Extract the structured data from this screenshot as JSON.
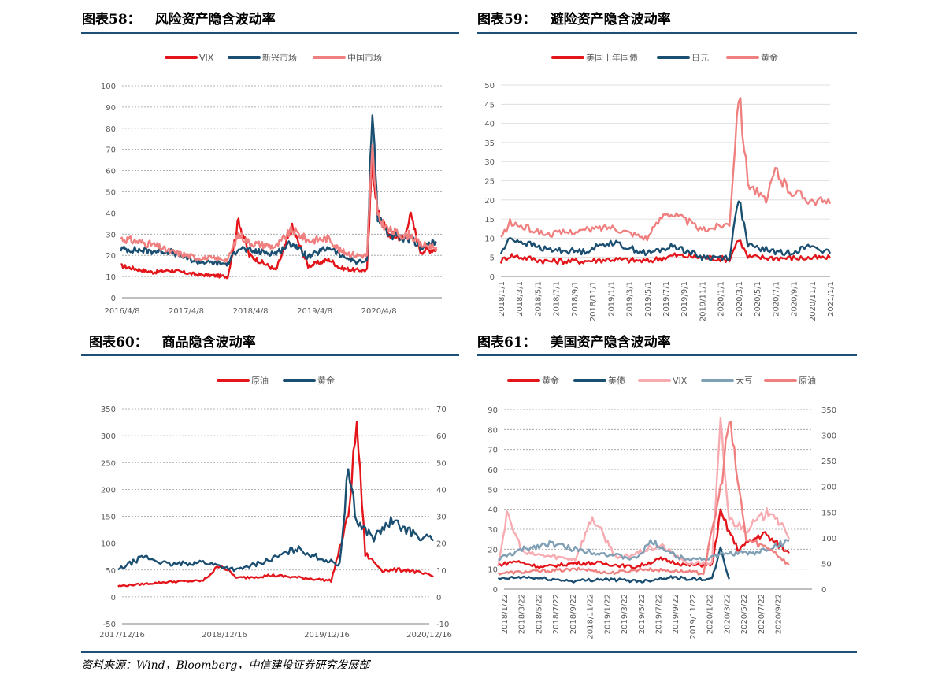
{
  "panels": [
    {
      "label": "图表58：",
      "title": "风险资产隐含波动率",
      "chart_data": {
        "type": "line",
        "title": "风险资产隐含波动率",
        "x_ticks": [
          "2016/4/8",
          "2017/4/8",
          "2018/4/8",
          "2019/4/8",
          "2020/4/8"
        ],
        "x_range": [
          "2016/4/8",
          "2021/3/31"
        ],
        "ylim": [
          0,
          100
        ],
        "yticks": [
          0,
          10,
          20,
          30,
          40,
          50,
          60,
          70,
          80,
          90,
          100
        ],
        "grid": "horizontal-dashed",
        "legend_position": "top",
        "series": [
          {
            "name": "VIX",
            "color": "#e3151a",
            "x": [
              "2016/4",
              "2016/10",
              "2017/1",
              "2017/6",
              "2017/12",
              "2018/2",
              "2018/4",
              "2018/9",
              "2018/12",
              "2019/3",
              "2019/7",
              "2019/9",
              "2019/12",
              "2020/2",
              "2020/3",
              "2020/4",
              "2020/6",
              "2020/9",
              "2020/10",
              "2020/12",
              "2021/3"
            ],
            "values": [
              15,
              12,
              13,
              11,
              10,
              37,
              20,
              13,
              33,
              15,
              18,
              14,
              13,
              13,
              65,
              40,
              30,
              28,
              40,
              22,
              23
            ]
          },
          {
            "name": "新兴市场",
            "color": "#1b4f72",
            "x": [
              "2016/4",
              "2016/10",
              "2017/1",
              "2017/6",
              "2017/12",
              "2018/2",
              "2018/4",
              "2018/9",
              "2018/12",
              "2019/3",
              "2019/7",
              "2019/9",
              "2019/12",
              "2020/2",
              "2020/3",
              "2020/4",
              "2020/6",
              "2020/9",
              "2020/10",
              "2020/12",
              "2021/3"
            ],
            "values": [
              23,
              22,
              22,
              17,
              16,
              24,
              22,
              21,
              26,
              19,
              24,
              20,
              17,
              17,
              92,
              38,
              30,
              27,
              28,
              24,
              26
            ]
          },
          {
            "name": "中国市场",
            "color": "#f08080",
            "x": [
              "2016/4",
              "2016/10",
              "2017/1",
              "2017/6",
              "2017/12",
              "2018/2",
              "2018/4",
              "2018/9",
              "2018/12",
              "2019/3",
              "2019/7",
              "2019/9",
              "2019/12",
              "2020/2",
              "2020/3",
              "2020/4",
              "2020/6",
              "2020/9",
              "2020/10",
              "2020/12",
              "2021/3"
            ],
            "values": [
              28,
              25,
              22,
              19,
              18,
              30,
              26,
              24,
              32,
              27,
              28,
              22,
              20,
              20,
              70,
              38,
              32,
              29,
              30,
              25,
              24
            ]
          }
        ]
      }
    },
    {
      "label": "图表59：",
      "title": "避险资产隐含波动率",
      "chart_data": {
        "type": "line",
        "title": "避险资产隐含波动率",
        "x_ticks": [
          "2018/1/1",
          "2018/3/1",
          "2018/5/1",
          "2018/7/1",
          "2018/9/1",
          "2018/11/1",
          "2019/1/1",
          "2019/3/1",
          "2019/5/1",
          "2019/7/1",
          "2019/9/1",
          "2019/11/1",
          "2020/1/1",
          "2020/3/1",
          "2020/5/1",
          "2020/7/1",
          "2020/9/1",
          "2020/11/1",
          "2021/1/1"
        ],
        "ylim": [
          0,
          50
        ],
        "yticks": [
          0,
          5,
          10,
          15,
          20,
          25,
          30,
          35,
          40,
          45,
          50
        ],
        "grid": "horizontal-solid",
        "legend_position": "top",
        "series": [
          {
            "name": "美国十年国债",
            "color": "#e3151a",
            "x": [
              "2018/1",
              "2018/2",
              "2018/6",
              "2018/10",
              "2019/1",
              "2019/5",
              "2019/8",
              "2019/11",
              "2020/2",
              "2020/3",
              "2020/4",
              "2020/8",
              "2021/1"
            ],
            "values": [
              4,
              5.5,
              4,
              4,
              4.5,
              4,
              5.5,
              5,
              4.5,
              10,
              5,
              4.8,
              4.8
            ]
          },
          {
            "name": "日元",
            "color": "#1b4f72",
            "x": [
              "2018/1",
              "2018/2",
              "2018/6",
              "2018/10",
              "2019/1",
              "2019/5",
              "2019/8",
              "2019/11",
              "2020/2",
              "2020/3",
              "2020/4",
              "2020/8",
              "2020/11",
              "2021/1"
            ],
            "values": [
              6,
              10,
              7,
              6.5,
              9,
              6,
              8,
              5,
              5,
              21,
              8,
              6,
              8,
              6
            ]
          },
          {
            "name": "黄金",
            "color": "#f08080",
            "x": [
              "2018/1",
              "2018/2",
              "2018/6",
              "2018/10",
              "2019/1",
              "2019/5",
              "2019/7",
              "2019/9",
              "2019/11",
              "2020/2",
              "2020/3",
              "2020/4",
              "2020/6",
              "2020/7",
              "2020/8",
              "2020/9",
              "2020/11",
              "2021/1"
            ],
            "values": [
              10,
              14,
              11,
              12,
              13,
              10,
              17,
              15,
              12,
              14,
              49,
              25,
              19,
              28,
              24,
              22,
              20,
              19
            ]
          }
        ]
      }
    },
    {
      "label": "图表60：",
      "title": "商品隐含波动率",
      "chart_data": {
        "type": "line",
        "title": "商品隐含波动率",
        "x_ticks": [
          "2017/12/16",
          "2018/12/16",
          "2019/12/16",
          "2020/12/16"
        ],
        "ylim": [
          -50,
          350
        ],
        "yticks": [
          -50,
          0,
          50,
          100,
          150,
          200,
          250,
          300,
          350
        ],
        "y2lim": [
          -10,
          70
        ],
        "y2ticks": [
          -10,
          0,
          10,
          20,
          30,
          40,
          50,
          60,
          70
        ],
        "grid": "horizontal-dashed",
        "legend_position": "top",
        "series": [
          {
            "name": "原油",
            "axis": "left",
            "color": "#e3151a",
            "x": [
              "2017/12",
              "2018/6",
              "2018/10",
              "2018/12",
              "2019/2",
              "2019/6",
              "2019/10",
              "2020/1",
              "2020/3",
              "2020/4",
              "2020/5",
              "2020/7",
              "2020/10",
              "2021/1"
            ],
            "values": [
              20,
              28,
              30,
              60,
              35,
              40,
              35,
              30,
              150,
              325,
              80,
              50,
              50,
              38
            ]
          },
          {
            "name": "黄金",
            "axis": "right",
            "color": "#1b4f72",
            "x": [
              "2017/12",
              "2018/3",
              "2018/6",
              "2018/10",
              "2019/2",
              "2019/6",
              "2019/9",
              "2019/12",
              "2020/2",
              "2020/3",
              "2020/4",
              "2020/6",
              "2020/8",
              "2020/11",
              "2021/1"
            ],
            "values": [
              10,
              15,
              12,
              13,
              10,
              14,
              18,
              14,
              12,
              48,
              28,
              22,
              28,
              23,
              21
            ]
          }
        ]
      }
    },
    {
      "label": "图表61：",
      "title": "美国资产隐含波动率",
      "chart_data": {
        "type": "line",
        "title": "美国资产隐含波动率",
        "x_ticks": [
          "2018/1/22",
          "2018/3/22",
          "2018/5/22",
          "2018/7/22",
          "2018/9/22",
          "2018/11/22",
          "2019/1/22",
          "2019/3/22",
          "2019/5/22",
          "2019/7/22",
          "2019/9/22",
          "2019/11/22",
          "2020/1/22",
          "2020/3/22",
          "2020/5/22",
          "2020/7/22",
          "2020/9/22"
        ],
        "ylim": [
          0,
          90
        ],
        "yticks": [
          0,
          10,
          20,
          30,
          40,
          50,
          60,
          70,
          80,
          90
        ],
        "y2lim": [
          0,
          350
        ],
        "y2ticks": [
          0,
          50,
          100,
          150,
          200,
          250,
          300,
          350
        ],
        "grid": "horizontal-dashed",
        "legend_position": "top",
        "series": [
          {
            "name": "黄金",
            "axis": "left",
            "color": "#e3151a",
            "x": [
              "2018/1",
              "2018/3",
              "2018/6",
              "2018/10",
              "2019/1",
              "2019/5",
              "2019/8",
              "2019/11",
              "2020/2",
              "2020/3",
              "2020/5",
              "2020/8",
              "2020/11"
            ],
            "values": [
              12,
              14,
              11,
              13,
              13,
              11,
              15,
              12,
              12,
              38,
              20,
              28,
              18
            ]
          },
          {
            "name": "美债",
            "axis": "left",
            "color": "#1b4f72",
            "x": [
              "2018/1",
              "2018/4",
              "2018/10",
              "2019/1",
              "2019/6",
              "2019/9",
              "2019/12",
              "2020/2",
              "2020/3",
              "2020/4"
            ],
            "values": [
              5,
              6,
              4,
              5,
              4,
              6,
              5,
              5,
              20,
              5
            ]
          },
          {
            "name": "VIX",
            "axis": "left",
            "color": "#f7aab0",
            "x": [
              "2018/1",
              "2018/2",
              "2018/4",
              "2018/10",
              "2018/12",
              "2019/3",
              "2019/8",
              "2019/11",
              "2020/2",
              "2020/3",
              "2020/4",
              "2020/6",
              "2020/9",
              "2020/11"
            ],
            "values": [
              12,
              37,
              18,
              15,
              36,
              15,
              22,
              13,
              13,
              82,
              35,
              30,
              40,
              25
            ]
          },
          {
            "name": "大豆",
            "axis": "left",
            "color": "#7f9fb5",
            "x": [
              "2018/1",
              "2018/4",
              "2018/7",
              "2018/10",
              "2019/1",
              "2019/5",
              "2019/7",
              "2019/10",
              "2020/1",
              "2020/4",
              "2020/7",
              "2020/11"
            ],
            "values": [
              15,
              20,
              23,
              20,
              18,
              15,
              24,
              16,
              15,
              18,
              18,
              24
            ]
          },
          {
            "name": "原油",
            "axis": "left",
            "color": "#f08080",
            "x": [
              "2018/1",
              "2018/6",
              "2018/11",
              "2019/2",
              "2019/6",
              "2019/10",
              "2020/1",
              "2020/3",
              "2020/4",
              "2020/6",
              "2020/9",
              "2020/11"
            ],
            "values": [
              8,
              9,
              10,
              8,
              10,
              9,
              8,
              50,
              85,
              25,
              20,
              12
            ]
          }
        ]
      }
    }
  ],
  "source": "资料来源：Wind，Bloomberg，中信建投证券研究发展部"
}
